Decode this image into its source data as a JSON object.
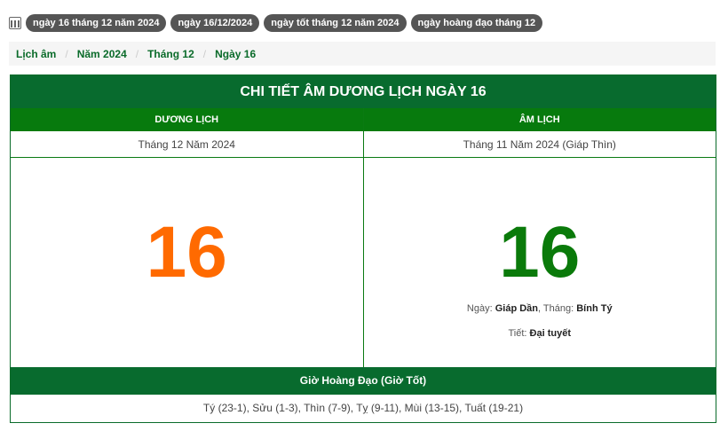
{
  "tags": [
    "ngày 16 tháng 12 năm 2024",
    "ngày 16/12/2024",
    "ngày tốt tháng 12 năm 2024",
    "ngày hoàng đạo tháng 12"
  ],
  "breadcrumb": [
    "Lịch âm",
    "Năm 2024",
    "Tháng 12",
    "Ngày 16"
  ],
  "table": {
    "title": "CHI TIẾT ÂM DƯƠNG LỊCH NGÀY 16",
    "solar_header": "DƯƠNG LỊCH",
    "lunar_header": "ÂM LỊCH",
    "solar_month": "Tháng 12 Năm 2024",
    "lunar_month": "Tháng 11 Năm 2024 (Giáp Thìn)",
    "solar_day": "16",
    "lunar_day": "16",
    "day_label": "Ngày: ",
    "day_value": "Giáp Dần",
    "month_label": ", Tháng: ",
    "month_value": "Bính Tý",
    "term_label": "Tiết: ",
    "term_value": "Đại tuyết",
    "hours_title": "Giờ Hoàng Đạo (Giờ Tốt)",
    "hours": "Tý (23-1), Sửu (1-3), Thìn (7-9), Tỵ (9-11), Mùi (13-15), Tuất (19-21)"
  },
  "colors": {
    "green": "#086b2e",
    "solar_day": "#ff6a00",
    "lunar_day": "#0a7a0a"
  }
}
